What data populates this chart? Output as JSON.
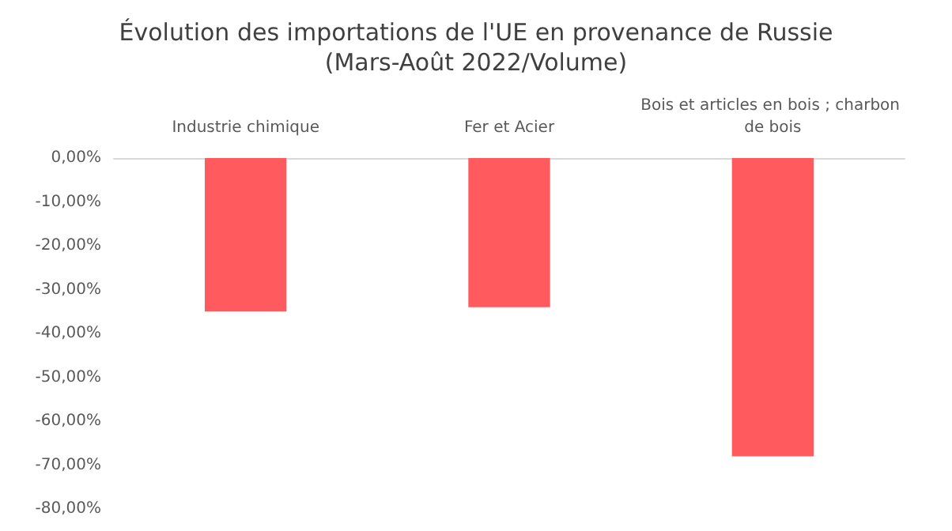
{
  "chart_data": {
    "type": "bar",
    "title": "Évolution des importations de l'UE en provenance de Russie",
    "subtitle": "(Mars-Août 2022/Volume)",
    "categories": [
      "Industrie chimique",
      "Fer et Acier",
      "Bois et articles en bois ; charbon de bois"
    ],
    "values": [
      -35,
      -34,
      -68
    ],
    "color": "#ff5b5f",
    "ylim": [
      -80,
      0
    ],
    "yticks": [
      {
        "value": 0,
        "label": "0,00%"
      },
      {
        "value": -10,
        "label": "-10,00%"
      },
      {
        "value": -20,
        "label": "-20,00%"
      },
      {
        "value": -30,
        "label": "-30,00%"
      },
      {
        "value": -40,
        "label": "-40,00%"
      },
      {
        "value": -50,
        "label": "-50,00%"
      },
      {
        "value": -60,
        "label": "-60,00%"
      },
      {
        "value": -70,
        "label": "-70,00%"
      },
      {
        "value": -80,
        "label": "-80,00%"
      }
    ],
    "grid": false
  }
}
